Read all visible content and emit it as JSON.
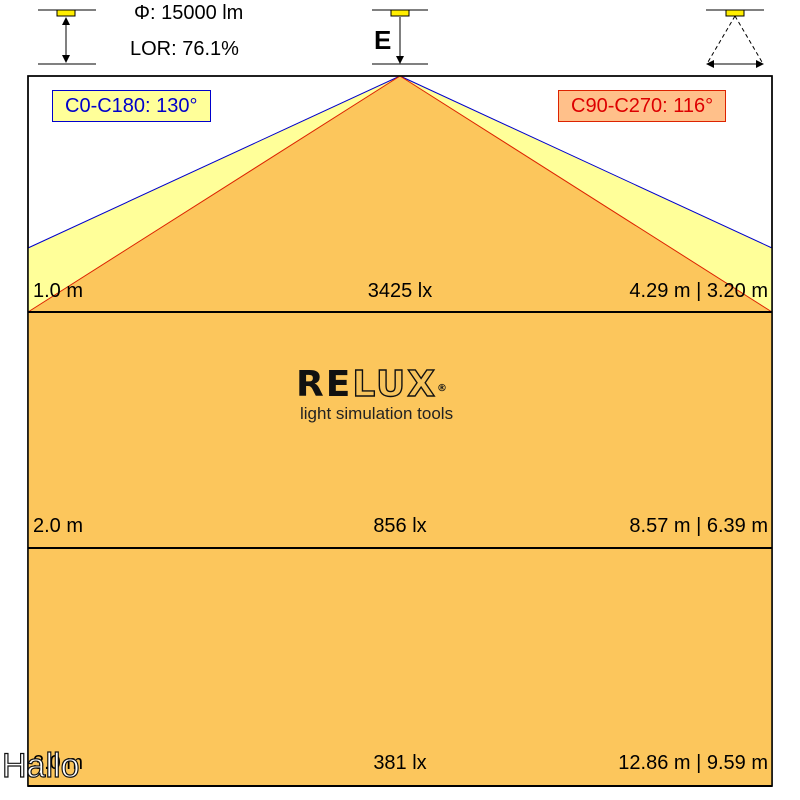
{
  "header": {
    "flux_text": "Φ: 15000 lm",
    "lor_text": "LOR: 76.1%",
    "e_label": "E"
  },
  "angles": {
    "c0_c180": "C0-C180: 130°",
    "c90_c270": "C90-C270: 116°"
  },
  "rows": [
    {
      "distance": "1.0 m",
      "illuminance": "3425 lx",
      "size": "4.29 m | 3.20 m"
    },
    {
      "distance": "2.0 m",
      "illuminance": "856 lx",
      "size": "8.57 m | 6.39 m"
    },
    {
      "distance": "3.0 m",
      "illuminance": "381 lx",
      "size": "12.86 m | 9.59 m"
    }
  ],
  "logo": {
    "word_solid": "RE",
    "word_outline": "LUX",
    "registered": "®",
    "tagline": "light simulation tools"
  },
  "watermark": "Hallo",
  "colors": {
    "cone_c90": "#fcc65c",
    "cone_c0": "#ffff99",
    "edge_c0": "#0000cc",
    "edge_c90": "#dd2200",
    "lamp": "#ffee00"
  }
}
